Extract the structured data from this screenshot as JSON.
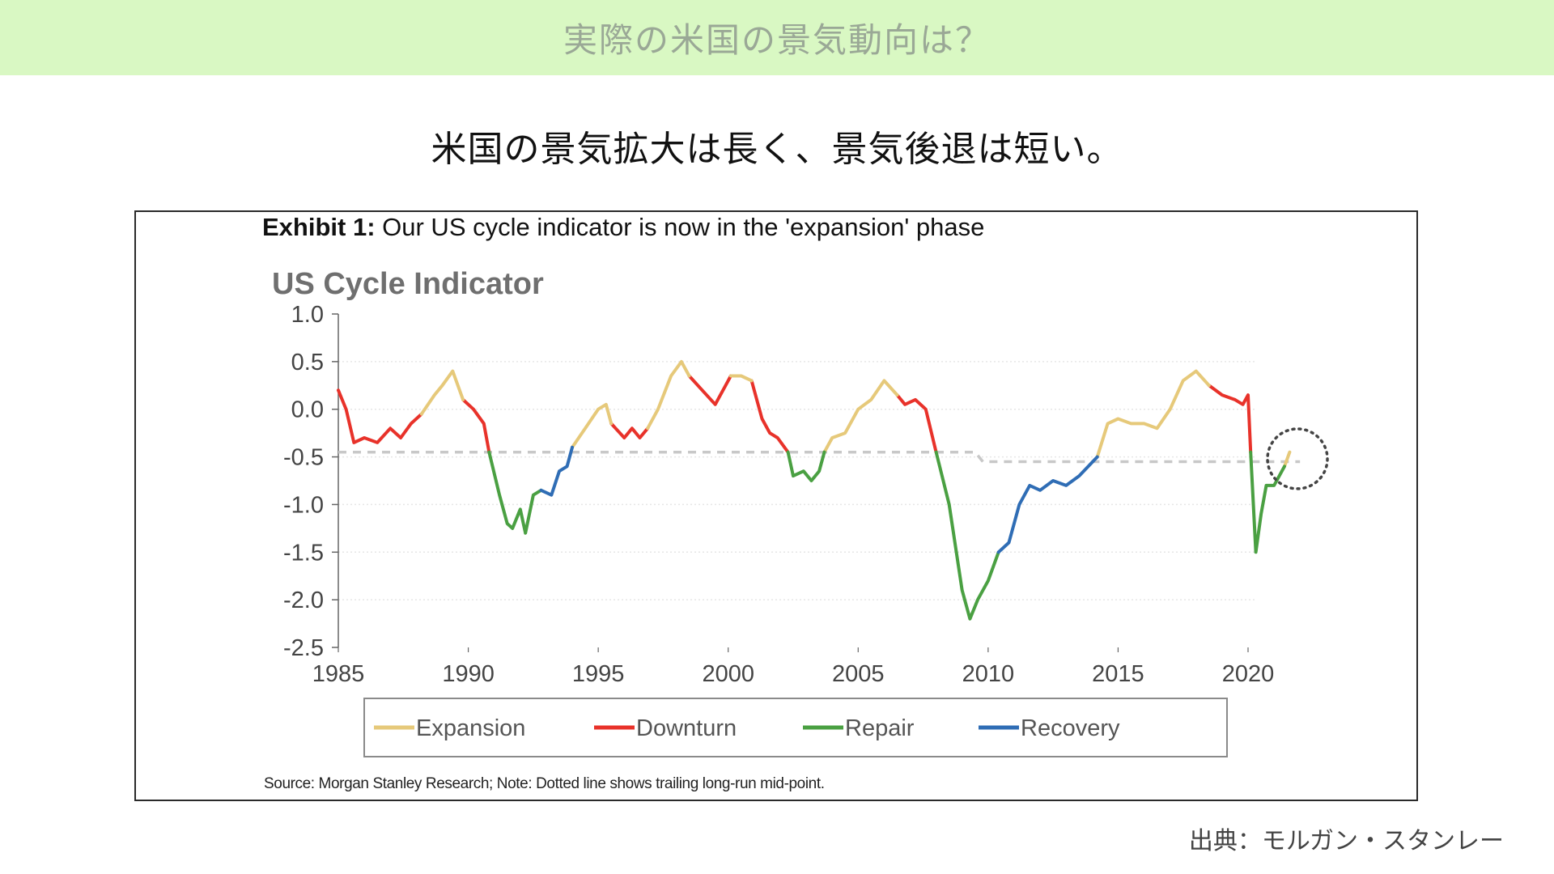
{
  "header": {
    "title": "実際の米国の景気動向は？"
  },
  "subtitle": "米国の景気拡大は長く、景気後退は短い。",
  "exhibit": {
    "label": "Exhibit 1:",
    "text": "Our US cycle indicator is now in the 'expansion' phase"
  },
  "source_note": "Source: Morgan Stanley Research; Note: Dotted line shows trailing long-run mid-point.",
  "citation": "出典：モルガン・スタンレー",
  "colors": {
    "header_band": "#d9f8c3",
    "Expansion": "#e6c97a",
    "Downturn": "#e8322a",
    "Repair": "#4aa042",
    "Recovery": "#2f6db5",
    "midpoint": "#c8c8c8"
  },
  "chart_data": {
    "type": "line",
    "title": "US Cycle Indicator",
    "ylim": [
      -2.5,
      1.0
    ],
    "xlim": [
      1985,
      2022
    ],
    "yticks": [
      "1.0",
      "0.5",
      "0.0",
      "-0.5",
      "-1.0",
      "-1.5",
      "-2.0",
      "-2.5"
    ],
    "xticks": [
      "1985",
      "1990",
      "1995",
      "2000",
      "2005",
      "2010",
      "2015",
      "2020"
    ],
    "grid": "horizontal",
    "legend": [
      "Expansion",
      "Downturn",
      "Repair",
      "Recovery"
    ],
    "legend_position": "bottom",
    "series": [
      {
        "name": "Downturn",
        "segments": [
          [
            [
              1985.0,
              0.2
            ],
            [
              1985.3,
              0.0
            ],
            [
              1985.6,
              -0.35
            ],
            [
              1986.0,
              -0.3
            ],
            [
              1986.5,
              -0.35
            ],
            [
              1987.0,
              -0.2
            ],
            [
              1987.4,
              -0.3
            ],
            [
              1987.8,
              -0.15
            ],
            [
              1988.2,
              -0.05
            ]
          ],
          [
            [
              1989.8,
              0.1
            ],
            [
              1990.2,
              0.0
            ],
            [
              1990.6,
              -0.15
            ],
            [
              1990.8,
              -0.45
            ]
          ],
          [
            [
              1995.5,
              -0.15
            ],
            [
              1996.0,
              -0.3
            ],
            [
              1996.3,
              -0.2
            ],
            [
              1996.6,
              -0.3
            ],
            [
              1996.9,
              -0.2
            ]
          ],
          [
            [
              1998.5,
              0.35
            ],
            [
              1999.0,
              0.2
            ],
            [
              1999.5,
              0.05
            ],
            [
              1999.9,
              0.25
            ],
            [
              2000.1,
              0.35
            ]
          ],
          [
            [
              2000.9,
              0.3
            ],
            [
              2001.3,
              -0.1
            ],
            [
              2001.6,
              -0.25
            ],
            [
              2001.9,
              -0.3
            ],
            [
              2002.3,
              -0.45
            ]
          ],
          [
            [
              2006.5,
              0.15
            ],
            [
              2006.8,
              0.05
            ],
            [
              2007.2,
              0.1
            ],
            [
              2007.6,
              0.0
            ],
            [
              2008.0,
              -0.45
            ]
          ],
          [
            [
              2018.5,
              0.25
            ],
            [
              2019.0,
              0.15
            ],
            [
              2019.5,
              0.1
            ],
            [
              2019.8,
              0.05
            ],
            [
              2020.0,
              0.15
            ],
            [
              2020.1,
              -0.45
            ]
          ]
        ]
      },
      {
        "name": "Expansion",
        "segments": [
          [
            [
              1988.2,
              -0.05
            ],
            [
              1988.7,
              0.15
            ],
            [
              1989.0,
              0.25
            ],
            [
              1989.4,
              0.4
            ],
            [
              1989.8,
              0.1
            ]
          ],
          [
            [
              1994.0,
              -0.4
            ],
            [
              1994.5,
              -0.2
            ],
            [
              1995.0,
              0.0
            ],
            [
              1995.3,
              0.05
            ],
            [
              1995.5,
              -0.15
            ]
          ],
          [
            [
              1996.9,
              -0.2
            ],
            [
              1997.3,
              0.0
            ],
            [
              1997.8,
              0.35
            ],
            [
              1998.2,
              0.5
            ],
            [
              1998.5,
              0.35
            ]
          ],
          [
            [
              2000.1,
              0.35
            ],
            [
              2000.5,
              0.35
            ],
            [
              2000.9,
              0.3
            ]
          ],
          [
            [
              2003.7,
              -0.45
            ],
            [
              2004.0,
              -0.3
            ],
            [
              2004.5,
              -0.25
            ],
            [
              2005.0,
              0.0
            ],
            [
              2005.5,
              0.1
            ],
            [
              2006.0,
              0.3
            ],
            [
              2006.5,
              0.15
            ]
          ],
          [
            [
              2014.2,
              -0.5
            ],
            [
              2014.6,
              -0.15
            ],
            [
              2015.0,
              -0.1
            ],
            [
              2015.5,
              -0.15
            ],
            [
              2016.0,
              -0.15
            ],
            [
              2016.5,
              -0.2
            ],
            [
              2017.0,
              0.0
            ],
            [
              2017.5,
              0.3
            ],
            [
              2018.0,
              0.4
            ],
            [
              2018.5,
              0.25
            ]
          ],
          [
            [
              2021.4,
              -0.6
            ],
            [
              2021.6,
              -0.45
            ]
          ]
        ]
      },
      {
        "name": "Repair",
        "segments": [
          [
            [
              1990.8,
              -0.45
            ],
            [
              1991.2,
              -0.9
            ],
            [
              1991.5,
              -1.2
            ],
            [
              1991.7,
              -1.25
            ],
            [
              1992.0,
              -1.05
            ],
            [
              1992.2,
              -1.3
            ],
            [
              1992.5,
              -0.9
            ],
            [
              1992.8,
              -0.85
            ]
          ],
          [
            [
              2002.3,
              -0.45
            ],
            [
              2002.5,
              -0.7
            ],
            [
              2002.9,
              -0.65
            ],
            [
              2003.2,
              -0.75
            ],
            [
              2003.5,
              -0.65
            ],
            [
              2003.7,
              -0.45
            ]
          ],
          [
            [
              2008.0,
              -0.45
            ],
            [
              2008.5,
              -1.0
            ],
            [
              2009.0,
              -1.9
            ],
            [
              2009.3,
              -2.2
            ],
            [
              2009.6,
              -2.0
            ],
            [
              2010.0,
              -1.8
            ],
            [
              2010.4,
              -1.5
            ]
          ],
          [
            [
              2020.1,
              -0.45
            ],
            [
              2020.3,
              -1.5
            ],
            [
              2020.5,
              -1.1
            ],
            [
              2020.7,
              -0.8
            ],
            [
              2021.0,
              -0.8
            ],
            [
              2021.4,
              -0.6
            ]
          ]
        ]
      },
      {
        "name": "Recovery",
        "segments": [
          [
            [
              1992.8,
              -0.85
            ],
            [
              1993.2,
              -0.9
            ],
            [
              1993.5,
              -0.65
            ],
            [
              1993.8,
              -0.6
            ],
            [
              1994.0,
              -0.4
            ]
          ],
          [
            [
              2010.4,
              -1.5
            ],
            [
              2010.8,
              -1.4
            ],
            [
              2011.2,
              -1.0
            ],
            [
              2011.6,
              -0.8
            ],
            [
              2012.0,
              -0.85
            ],
            [
              2012.5,
              -0.75
            ],
            [
              2013.0,
              -0.8
            ],
            [
              2013.5,
              -0.7
            ],
            [
              2014.2,
              -0.5
            ]
          ]
        ]
      },
      {
        "name": "Long-run mid-point",
        "points": [
          [
            1985.0,
            -0.45
          ],
          [
            2009.5,
            -0.45
          ],
          [
            2009.8,
            -0.55
          ],
          [
            2022.0,
            -0.55
          ]
        ]
      }
    ]
  }
}
